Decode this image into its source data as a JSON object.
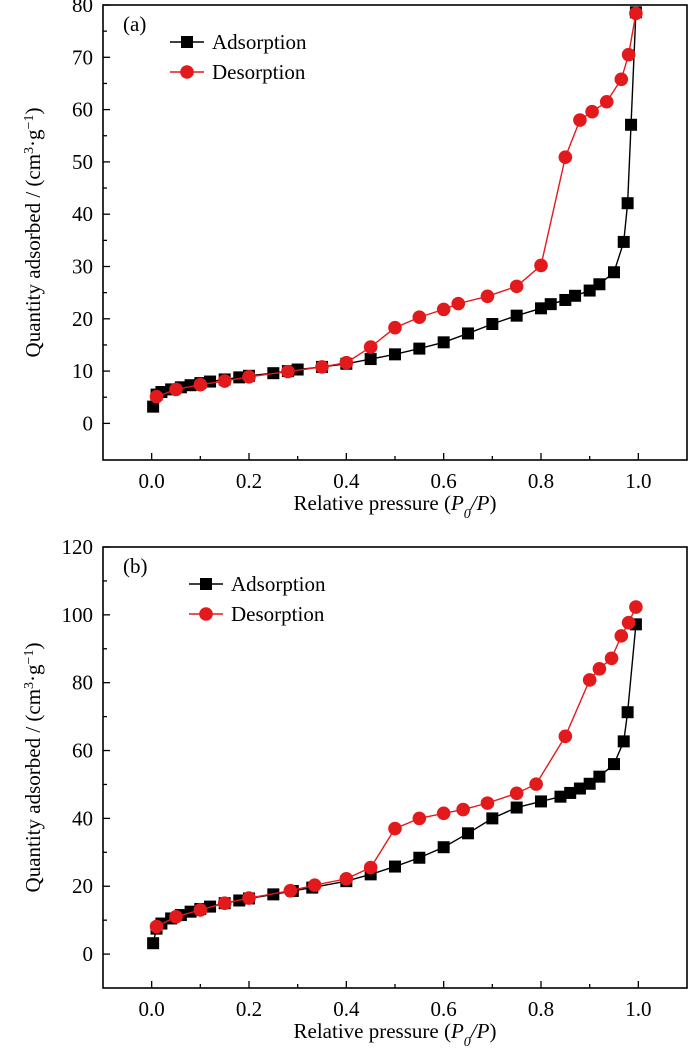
{
  "chart_data": [
    {
      "type": "line",
      "panel_label": "(a)",
      "xlabel_prefix": "Relative pressure (",
      "xlabel_p0": "P",
      "xlabel_p0_sub": "0",
      "xlabel_slash": "/",
      "xlabel_p": "P",
      "xlabel_suffix": ")",
      "ylabel_prefix": "Quantity adsorbed / (cm",
      "ylabel_sup1": "3",
      "ylabel_mid": "·g",
      "ylabel_sup2": "−1",
      "ylabel_suffix": ")",
      "xlim": [
        -0.1,
        1.1
      ],
      "ylim": [
        -7,
        80
      ],
      "xticks": [
        0.0,
        0.2,
        0.4,
        0.6,
        0.8,
        1.0
      ],
      "xtick_labels": [
        "0.0",
        "0.2",
        "0.4",
        "0.6",
        "0.8",
        "1.0"
      ],
      "yticks": [
        0,
        10,
        20,
        30,
        40,
        50,
        60,
        70,
        80
      ],
      "ytick_labels": [
        "0",
        "10",
        "20",
        "30",
        "40",
        "50",
        "60",
        "70",
        "80"
      ],
      "legend_placement": "top-left",
      "series": [
        {
          "name": "Adsorption",
          "color": "#000000",
          "marker": "square",
          "x": [
            0.003,
            0.01,
            0.02,
            0.04,
            0.06,
            0.08,
            0.1,
            0.12,
            0.15,
            0.18,
            0.2,
            0.25,
            0.28,
            0.3,
            0.35,
            0.4,
            0.45,
            0.5,
            0.55,
            0.6,
            0.65,
            0.7,
            0.75,
            0.8,
            0.82,
            0.85,
            0.87,
            0.9,
            0.92,
            0.95,
            0.97,
            0.978,
            0.985,
            0.995
          ],
          "y": [
            3.2,
            5.5,
            6.0,
            6.5,
            6.9,
            7.3,
            7.7,
            8.0,
            8.4,
            8.8,
            9.1,
            9.6,
            10.0,
            10.3,
            10.8,
            11.4,
            12.3,
            13.2,
            14.3,
            15.5,
            17.2,
            19.0,
            20.6,
            22.0,
            22.8,
            23.6,
            24.4,
            25.4,
            26.6,
            28.9,
            34.7,
            42.1,
            57.1,
            78.6
          ]
        },
        {
          "name": "Desorption",
          "color": "#e31a1c",
          "marker": "circle",
          "x": [
            0.995,
            0.98,
            0.965,
            0.935,
            0.905,
            0.88,
            0.85,
            0.8,
            0.75,
            0.69,
            0.63,
            0.6,
            0.55,
            0.5,
            0.45,
            0.4,
            0.35,
            0.28,
            0.2,
            0.15,
            0.1,
            0.05,
            0.01
          ],
          "y": [
            78.4,
            70.5,
            65.8,
            61.5,
            59.6,
            58.0,
            50.9,
            30.2,
            26.2,
            24.3,
            22.9,
            21.8,
            20.3,
            18.3,
            14.6,
            11.6,
            10.8,
            9.9,
            8.9,
            8.1,
            7.4,
            6.5,
            5.1
          ]
        }
      ]
    },
    {
      "type": "line",
      "panel_label": "(b)",
      "xlabel_prefix": "Relative pressure (",
      "xlabel_p0": "P",
      "xlabel_p0_sub": "0",
      "xlabel_slash": "/",
      "xlabel_p": "P",
      "xlabel_suffix": ")",
      "ylabel_prefix": "Quantity adsorbed / (cm",
      "ylabel_sup1": "3",
      "ylabel_mid": "·g",
      "ylabel_sup2": "−1",
      "ylabel_suffix": ")",
      "xlim": [
        -0.1,
        1.1
      ],
      "ylim": [
        -10,
        120
      ],
      "xticks": [
        0.0,
        0.2,
        0.4,
        0.6,
        0.8,
        1.0
      ],
      "xtick_labels": [
        "0.0",
        "0.2",
        "0.4",
        "0.6",
        "0.8",
        "1.0"
      ],
      "yticks": [
        0,
        20,
        40,
        60,
        80,
        100,
        120
      ],
      "ytick_labels": [
        "0",
        "20",
        "40",
        "60",
        "80",
        "100",
        "120"
      ],
      "legend_placement": "top-left",
      "series": [
        {
          "name": "Adsorption",
          "color": "#000000",
          "marker": "square",
          "x": [
            0.003,
            0.01,
            0.02,
            0.04,
            0.06,
            0.08,
            0.1,
            0.12,
            0.15,
            0.18,
            0.2,
            0.25,
            0.29,
            0.33,
            0.4,
            0.45,
            0.5,
            0.55,
            0.6,
            0.65,
            0.7,
            0.75,
            0.8,
            0.84,
            0.86,
            0.88,
            0.9,
            0.92,
            0.95,
            0.97,
            0.978,
            0.995
          ],
          "y": [
            3.2,
            7.5,
            9.0,
            10.5,
            11.5,
            12.5,
            13.3,
            14.0,
            15.0,
            15.8,
            16.4,
            17.6,
            18.6,
            19.6,
            21.5,
            23.5,
            25.8,
            28.4,
            31.5,
            35.6,
            40.0,
            43.2,
            45.0,
            46.4,
            47.5,
            48.8,
            50.2,
            52.3,
            56.0,
            62.7,
            71.3,
            97.2
          ]
        },
        {
          "name": "Desorption",
          "color": "#e31a1c",
          "marker": "circle",
          "x": [
            0.995,
            0.98,
            0.965,
            0.945,
            0.92,
            0.9,
            0.85,
            0.79,
            0.75,
            0.69,
            0.64,
            0.6,
            0.55,
            0.5,
            0.45,
            0.4,
            0.335,
            0.285,
            0.2,
            0.15,
            0.1,
            0.05,
            0.01
          ],
          "y": [
            102.3,
            97.7,
            93.8,
            87.2,
            84.1,
            80.8,
            64.2,
            50.1,
            47.4,
            44.5,
            42.6,
            41.5,
            40.0,
            37.0,
            25.5,
            22.2,
            20.3,
            18.7,
            16.5,
            15.0,
            13.0,
            11.0,
            8.1
          ]
        }
      ]
    }
  ]
}
